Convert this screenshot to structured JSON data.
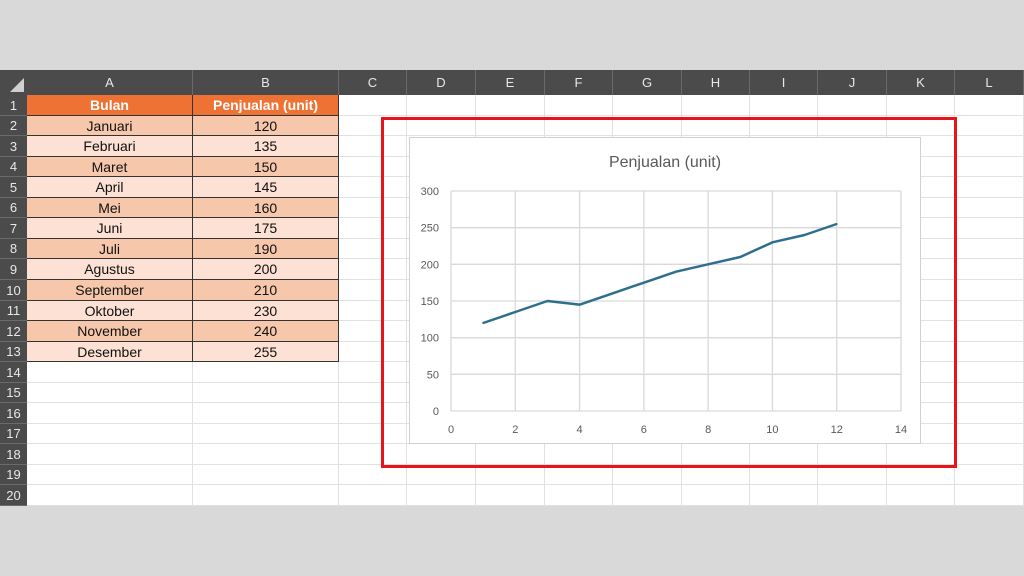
{
  "columns": [
    "A",
    "B",
    "C",
    "D",
    "E",
    "F",
    "G",
    "H",
    "I",
    "J",
    "K",
    "L"
  ],
  "row_numbers": [
    "1",
    "2",
    "3",
    "4",
    "5",
    "6",
    "7",
    "8",
    "9",
    "10",
    "11",
    "12",
    "13",
    "14",
    "15",
    "16",
    "17",
    "18",
    "19",
    "20"
  ],
  "table": {
    "headers": [
      "Bulan",
      "Penjualan (unit)"
    ],
    "rows": [
      [
        "Januari",
        "120"
      ],
      [
        "Februari",
        "135"
      ],
      [
        "Maret",
        "150"
      ],
      [
        "April",
        "145"
      ],
      [
        "Mei",
        "160"
      ],
      [
        "Juni",
        "175"
      ],
      [
        "Juli",
        "190"
      ],
      [
        "Agustus",
        "200"
      ],
      [
        "September",
        "210"
      ],
      [
        "Oktober",
        "230"
      ],
      [
        "November",
        "240"
      ],
      [
        "Desember",
        "255"
      ]
    ]
  },
  "colors": {
    "header_fill": "#ed7233",
    "row_fill_dark": "#f6c7ab",
    "row_fill_light": "#fce1d4",
    "line": "#2e6f8e",
    "highlight_box": "#e8141b"
  },
  "chart_data": {
    "type": "line",
    "title": "Penjualan (unit)",
    "x": [
      1,
      2,
      3,
      4,
      5,
      6,
      7,
      8,
      9,
      10,
      11,
      12
    ],
    "values": [
      120,
      135,
      150,
      145,
      160,
      175,
      190,
      200,
      210,
      230,
      240,
      255
    ],
    "xlim": [
      0,
      14
    ],
    "ylim": [
      0,
      300
    ],
    "xticks": [
      "0",
      "2",
      "4",
      "6",
      "8",
      "10",
      "12",
      "14"
    ],
    "yticks": [
      "0",
      "50",
      "100",
      "150",
      "200",
      "250",
      "300"
    ],
    "grid": true
  }
}
